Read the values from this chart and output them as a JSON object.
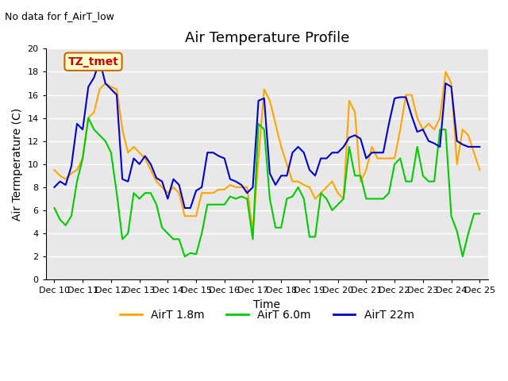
{
  "title": "Air Temperature Profile",
  "top_left_note": "No data for f_AirT_low",
  "annotation_text": "TZ_tmet",
  "annotation_bg": "#ffffcc",
  "annotation_border": "#cc6600",
  "annotation_text_color": "#cc0000",
  "xlabel": "Time",
  "ylabel": "Air Termperature (C)",
  "ylim": [
    0,
    20
  ],
  "yticks": [
    0,
    2,
    4,
    6,
    8,
    10,
    12,
    14,
    16,
    18,
    20
  ],
  "x_labels": [
    "Dec 10",
    "Dec 11",
    "Dec 12",
    "Dec 13",
    "Dec 14",
    "Dec 15",
    "Dec 16",
    "Dec 17",
    "Dec 18",
    "Dec 19",
    "Dec 20",
    "Dec 21",
    "Dec 22",
    "Dec 23",
    "Dec 24",
    "Dec 25"
  ],
  "bg_color": "#e8e8e8",
  "grid_color": "white",
  "color_18m": "#FFA500",
  "color_60m": "#00CC00",
  "color_22m": "#0000CC",
  "label_18m": "AirT 1.8m",
  "label_60m": "AirT 6.0m",
  "label_22m": "AirT 22m",
  "x_18m": [
    0,
    0.2,
    0.4,
    0.6,
    0.8,
    1.0,
    1.2,
    1.4,
    1.6,
    1.8,
    2.0,
    2.2,
    2.4,
    2.6,
    2.8,
    3.0,
    3.2,
    3.4,
    3.6,
    3.8,
    4.0,
    4.2,
    4.4,
    4.6,
    4.8,
    5.0,
    5.2,
    5.4,
    5.6,
    5.8,
    6.0,
    6.2,
    6.4,
    6.6,
    6.8,
    7.0,
    7.2,
    7.4,
    7.6,
    7.8,
    8.0,
    8.2,
    8.4,
    8.6,
    8.8,
    9.0,
    9.2,
    9.4,
    9.6,
    9.8,
    10.0,
    10.2,
    10.4,
    10.6,
    10.8,
    11.0,
    11.2,
    11.4,
    11.6,
    11.8,
    12.0,
    12.2,
    12.4,
    12.6,
    12.8,
    13.0,
    13.2,
    13.4,
    13.6,
    13.8,
    14.0,
    14.2,
    14.4,
    14.6,
    14.8,
    15.0
  ],
  "y_18m": [
    9.5,
    9.0,
    8.7,
    9.2,
    9.5,
    10.5,
    14.0,
    14.5,
    16.5,
    17.0,
    16.7,
    16.5,
    13.0,
    11.0,
    11.5,
    11.0,
    10.5,
    9.5,
    8.5,
    8.0,
    7.5,
    8.0,
    7.5,
    5.5,
    5.5,
    5.5,
    7.5,
    7.5,
    7.5,
    7.8,
    7.8,
    8.2,
    8.0,
    8.0,
    8.0,
    4.0,
    10.5,
    16.5,
    15.5,
    13.5,
    11.5,
    10.0,
    8.5,
    8.5,
    8.2,
    8.0,
    7.0,
    7.5,
    8.0,
    8.5,
    7.5,
    7.0,
    15.5,
    14.5,
    8.5,
    9.5,
    11.5,
    10.5,
    10.5,
    10.5,
    10.5,
    13.0,
    16.0,
    16.0,
    14.0,
    13.0,
    13.5,
    13.0,
    14.0,
    18.0,
    17.0,
    10.0,
    13.0,
    12.5,
    11.0,
    9.5
  ],
  "x_60m": [
    0,
    0.2,
    0.4,
    0.6,
    0.8,
    1.0,
    1.2,
    1.4,
    1.6,
    1.8,
    2.0,
    2.2,
    2.4,
    2.6,
    2.8,
    3.0,
    3.2,
    3.4,
    3.6,
    3.8,
    4.0,
    4.2,
    4.4,
    4.6,
    4.8,
    5.0,
    5.2,
    5.4,
    5.6,
    5.8,
    6.0,
    6.2,
    6.4,
    6.6,
    6.8,
    7.0,
    7.2,
    7.4,
    7.6,
    7.8,
    8.0,
    8.2,
    8.4,
    8.6,
    8.8,
    9.0,
    9.2,
    9.4,
    9.6,
    9.8,
    10.0,
    10.2,
    10.4,
    10.6,
    10.8,
    11.0,
    11.2,
    11.4,
    11.6,
    11.8,
    12.0,
    12.2,
    12.4,
    12.6,
    12.8,
    13.0,
    13.2,
    13.4,
    13.6,
    13.8,
    14.0,
    14.2,
    14.4,
    14.6,
    14.8,
    15.0
  ],
  "y_60m": [
    6.2,
    5.2,
    4.7,
    5.5,
    8.5,
    10.5,
    14.0,
    13.0,
    12.5,
    12.0,
    11.0,
    7.5,
    3.5,
    4.0,
    7.5,
    7.0,
    7.5,
    7.5,
    6.5,
    4.5,
    4.0,
    3.5,
    3.5,
    2.0,
    2.3,
    2.2,
    4.0,
    6.5,
    6.5,
    6.5,
    6.5,
    7.2,
    7.0,
    7.2,
    7.0,
    3.5,
    13.5,
    13.0,
    7.0,
    4.5,
    4.5,
    7.0,
    7.2,
    8.0,
    7.0,
    3.7,
    3.7,
    7.5,
    7.0,
    6.0,
    6.5,
    7.0,
    11.5,
    9.0,
    9.0,
    7.0,
    7.0,
    7.0,
    7.0,
    7.5,
    10.0,
    10.5,
    8.5,
    8.5,
    11.5,
    9.0,
    8.5,
    8.5,
    13.0,
    13.0,
    5.5,
    4.2,
    2.0,
    4.0,
    5.7,
    5.7
  ],
  "x_22m": [
    0,
    0.2,
    0.4,
    0.6,
    0.8,
    1.0,
    1.2,
    1.4,
    1.6,
    1.8,
    2.0,
    2.2,
    2.4,
    2.6,
    2.8,
    3.0,
    3.2,
    3.4,
    3.6,
    3.8,
    4.0,
    4.2,
    4.4,
    4.6,
    4.8,
    5.0,
    5.2,
    5.4,
    5.6,
    5.8,
    6.0,
    6.2,
    6.4,
    6.6,
    6.8,
    7.0,
    7.2,
    7.4,
    7.6,
    7.8,
    8.0,
    8.2,
    8.4,
    8.6,
    8.8,
    9.0,
    9.2,
    9.4,
    9.6,
    9.8,
    10.0,
    10.2,
    10.4,
    10.6,
    10.8,
    11.0,
    11.2,
    11.4,
    11.6,
    11.8,
    12.0,
    12.2,
    12.4,
    12.6,
    12.8,
    13.0,
    13.2,
    13.4,
    13.6,
    13.8,
    14.0,
    14.2,
    14.4,
    14.6,
    14.8,
    15.0
  ],
  "y_22m": [
    8.0,
    8.5,
    8.2,
    9.8,
    13.5,
    13.0,
    16.7,
    17.5,
    19.0,
    17.0,
    16.5,
    16.0,
    8.7,
    8.5,
    10.5,
    10.0,
    10.7,
    10.0,
    8.8,
    8.5,
    7.0,
    8.7,
    8.2,
    6.2,
    6.2,
    7.7,
    8.0,
    11.0,
    11.0,
    10.7,
    10.5,
    8.7,
    8.5,
    8.2,
    7.5,
    8.0,
    15.5,
    15.7,
    9.2,
    8.2,
    9.0,
    9.0,
    11.0,
    11.5,
    11.0,
    9.5,
    9.0,
    10.5,
    10.5,
    11.0,
    11.0,
    11.5,
    12.3,
    12.5,
    12.2,
    10.5,
    11.0,
    11.0,
    11.0,
    13.5,
    15.7,
    15.8,
    15.8,
    14.2,
    12.8,
    13.0,
    12.0,
    11.8,
    11.5,
    17.0,
    16.7,
    12.0,
    11.7,
    11.5,
    11.5,
    11.5
  ]
}
